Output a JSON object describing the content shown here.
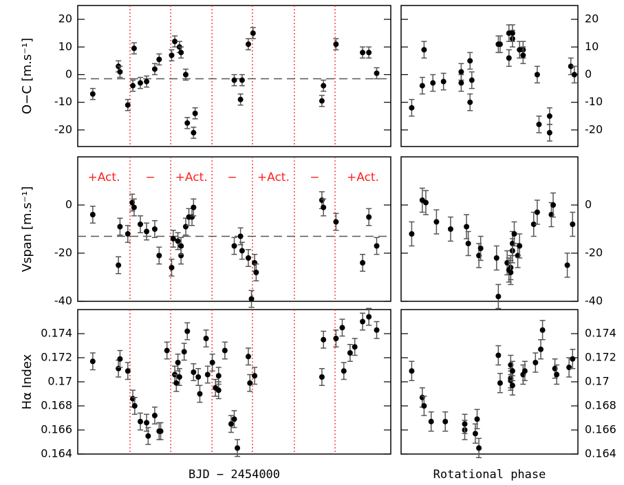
{
  "chart_data": [
    {
      "type": "scatter",
      "ylabel": "O−C [m.s⁻¹]",
      "xlim": [
        0,
        100
      ],
      "ylim": [
        -26,
        25
      ],
      "yticks": [
        -20,
        -10,
        0,
        10,
        20
      ],
      "yerr": 2,
      "hline": -1.5,
      "vlines": [
        16.7,
        29.7,
        42.9,
        55.8,
        69.2,
        82.2
      ],
      "color": "#000000",
      "vline_color": "#ff2020",
      "x": [
        4.8,
        13,
        13.5,
        16,
        17.6,
        18,
        20,
        22,
        24.6,
        26,
        30,
        31,
        32.5,
        33,
        34.5,
        35,
        37,
        37.5,
        50,
        52,
        52.5,
        54.5,
        56,
        78,
        78.5,
        82.5,
        91,
        93,
        95.5
      ],
      "y": [
        -7,
        3,
        1,
        -11,
        -4,
        9.5,
        -3,
        -2.5,
        2,
        5.5,
        7,
        12,
        10,
        8,
        0,
        -17.5,
        -21,
        -14,
        -2,
        -9,
        -2,
        11,
        15,
        -9.5,
        -4,
        11,
        8,
        8,
        0.5
      ]
    },
    {
      "type": "scatter",
      "xlim": [
        0,
        1
      ],
      "ylim": [
        -26,
        25
      ],
      "yticks": [
        -20,
        -10,
        0,
        10,
        20
      ],
      "yerr": 3,
      "color": "#000000",
      "x": [
        0.06,
        0.12,
        0.13,
        0.18,
        0.24,
        0.34,
        0.34,
        0.39,
        0.39,
        0.4,
        0.55,
        0.56,
        0.61,
        0.61,
        0.63,
        0.63,
        0.67,
        0.69,
        0.69,
        0.77,
        0.78,
        0.84,
        0.84,
        0.96,
        0.98
      ],
      "y": [
        -12,
        -4,
        9,
        -3,
        -2.5,
        1,
        -3,
        5,
        -10,
        -2,
        11,
        11,
        6,
        15,
        13,
        15,
        9,
        9,
        7,
        0,
        -18,
        -15,
        -21,
        3,
        0
      ]
    },
    {
      "type": "scatter",
      "ylabel": "Vspan [m.s⁻¹]",
      "xlim": [
        0,
        100
      ],
      "ylim": [
        -40,
        20
      ],
      "yticks": [
        -40,
        -20,
        0
      ],
      "yerr": 3.5,
      "hline": -13,
      "vlines": [
        16.7,
        29.7,
        42.9,
        55.8,
        69.2,
        82.2
      ],
      "color": "#000000",
      "vline_color": "#ff2020",
      "annotations": [
        "+Act.",
        "−",
        "+Act.",
        "−",
        "+Act.",
        "−",
        "+Act."
      ],
      "x": [
        4.8,
        13,
        13.5,
        16,
        17.4,
        18,
        20,
        22,
        24.6,
        26,
        30,
        30.5,
        32,
        33,
        33,
        34.5,
        35.5,
        36.5,
        37,
        50,
        52,
        52.5,
        54.5,
        55.5,
        56.5,
        57,
        78,
        78.5,
        82.5,
        91,
        93,
        95.5
      ],
      "y": [
        -4,
        -25,
        -9,
        -12,
        1,
        -1,
        -8,
        -11,
        -10,
        -21,
        -26,
        -14,
        -15,
        -21,
        -17,
        -9,
        -5,
        -5,
        -1,
        -17,
        -13,
        -19,
        -22,
        -39,
        -24,
        -28,
        2,
        -1,
        -7,
        -24,
        -5,
        -17
      ]
    },
    {
      "type": "scatter",
      "xlim": [
        0,
        1
      ],
      "ylim": [
        -40,
        20
      ],
      "yticks": [
        -40,
        -20,
        0
      ],
      "yerr": 5,
      "color": "#000000",
      "x": [
        0.06,
        0.12,
        0.14,
        0.2,
        0.28,
        0.37,
        0.38,
        0.44,
        0.45,
        0.54,
        0.55,
        0.6,
        0.61,
        0.62,
        0.62,
        0.63,
        0.63,
        0.64,
        0.66,
        0.67,
        0.75,
        0.77,
        0.85,
        0.86,
        0.94,
        0.97
      ],
      "y": [
        -12,
        2,
        1,
        -7,
        -10,
        -9,
        -16,
        -21,
        -18,
        -22,
        -38,
        -24,
        -27,
        -26,
        -28,
        -19,
        -16,
        -12,
        -21,
        -17,
        -8,
        -3,
        -4,
        0,
        -25,
        -8
      ]
    },
    {
      "type": "scatter",
      "ylabel": "Hα Index",
      "xlabel": "BJD − 2454000",
      "xlim": [
        0,
        100
      ],
      "ylim": [
        0.164,
        0.176
      ],
      "yticks": [
        0.164,
        0.166,
        0.168,
        0.17,
        0.172,
        0.174
      ],
      "yerr": 0.0007,
      "vlines": [
        16.7,
        29.7,
        42.9,
        55.8,
        69.2,
        82.2
      ],
      "color": "#000000",
      "vline_color": "#ff2020",
      "x": [
        4.8,
        13,
        13.5,
        16,
        17.6,
        18.2,
        20,
        22,
        22.5,
        24.6,
        26,
        26.5,
        28.5,
        31,
        31.5,
        32,
        32.5,
        34,
        35,
        37,
        38.5,
        39,
        41,
        41.5,
        43,
        44,
        45,
        45,
        47,
        49,
        50,
        51,
        54.5,
        55,
        56.5,
        78,
        78.5,
        82.5,
        84.5,
        85,
        87,
        88.5,
        91,
        93,
        95.5
      ],
      "y": [
        0.1717,
        0.1711,
        0.1719,
        0.1709,
        0.1686,
        0.168,
        0.1667,
        0.1666,
        0.1655,
        0.1672,
        0.1659,
        0.1659,
        0.1726,
        0.1706,
        0.1699,
        0.1716,
        0.1704,
        0.1725,
        0.1742,
        0.1708,
        0.1704,
        0.169,
        0.1736,
        0.1706,
        0.1716,
        0.1695,
        0.1705,
        0.1693,
        0.1726,
        0.1665,
        0.1669,
        0.1645,
        0.1721,
        0.1699,
        0.1705,
        0.1704,
        0.1735,
        0.1736,
        0.1745,
        0.1709,
        0.1724,
        0.1729,
        0.175,
        0.1754,
        0.1743
      ]
    },
    {
      "type": "scatter",
      "xlabel": "Rotational phase",
      "xlim": [
        0,
        1
      ],
      "ylim": [
        0.164,
        0.176
      ],
      "yticks": [
        0.164,
        0.166,
        0.168,
        0.17,
        0.172,
        0.174
      ],
      "yerr": 0.0008,
      "color": "#000000",
      "x": [
        0.06,
        0.12,
        0.13,
        0.17,
        0.25,
        0.36,
        0.36,
        0.42,
        0.43,
        0.44,
        0.55,
        0.56,
        0.62,
        0.62,
        0.62,
        0.63,
        0.63,
        0.69,
        0.7,
        0.76,
        0.79,
        0.8,
        0.87,
        0.88,
        0.95,
        0.97
      ],
      "y": [
        0.1709,
        0.1687,
        0.168,
        0.1667,
        0.1667,
        0.166,
        0.1665,
        0.1657,
        0.1669,
        0.1645,
        0.1722,
        0.1699,
        0.1714,
        0.1703,
        0.1701,
        0.1697,
        0.1709,
        0.1706,
        0.1709,
        0.1716,
        0.1727,
        0.1743,
        0.1711,
        0.1706,
        0.1712,
        0.1719
      ]
    }
  ]
}
